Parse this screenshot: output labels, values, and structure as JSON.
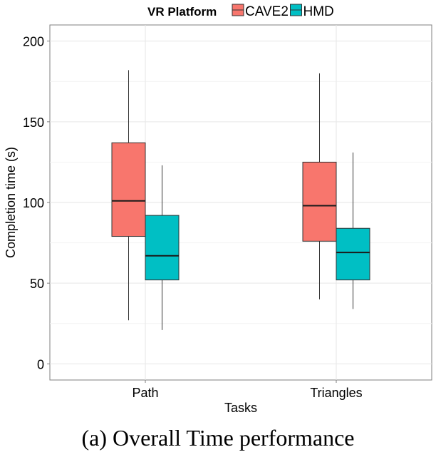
{
  "chart_data": {
    "type": "box",
    "legend": {
      "title": "VR Platform",
      "position": "top"
    },
    "xlabel": "Tasks",
    "ylabel": "Completion time (s)",
    "categories": [
      "Path",
      "Triangles"
    ],
    "ylim": [
      -10,
      210
    ],
    "yticks": [
      0,
      50,
      100,
      150,
      200
    ],
    "grid": true,
    "series": [
      {
        "name": "CAVE2",
        "color": "#F8766D",
        "boxes": [
          {
            "min": 27,
            "q1": 79,
            "median": 101,
            "q3": 137,
            "max": 182
          },
          {
            "min": 40,
            "q1": 76,
            "median": 98,
            "q3": 125,
            "max": 180
          }
        ]
      },
      {
        "name": "HMD",
        "color": "#00BFC4",
        "boxes": [
          {
            "min": 21,
            "q1": 52,
            "median": 67,
            "q3": 92,
            "max": 123
          },
          {
            "min": 34,
            "q1": 52,
            "median": 69,
            "q3": 84,
            "max": 131
          }
        ]
      }
    ]
  },
  "caption": "(a)  Overall Time performance"
}
